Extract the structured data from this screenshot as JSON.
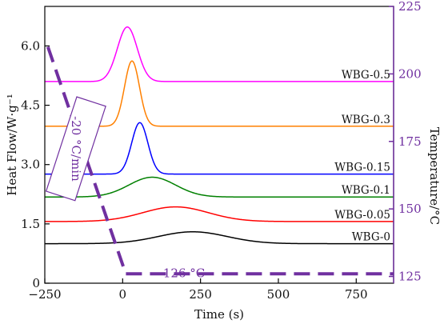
{
  "chart_data": {
    "type": "line",
    "xlabel": "Time (s)",
    "ylabel": "Heat Flow/W·g⁻¹",
    "y2label": "Temperature/°C",
    "xlim": [
      -250,
      870
    ],
    "ylim": [
      0,
      7.0
    ],
    "y2lim": [
      122.5,
      225
    ],
    "x_ticks": [
      -250,
      0,
      250,
      500,
      750
    ],
    "y_ticks": [
      0,
      1.5,
      3.0,
      4.5,
      6.0
    ],
    "y_tick_labels": [
      "0",
      "1.5",
      "3.0",
      "4.5",
      "6.0"
    ],
    "y2_ticks": [
      125,
      150,
      175,
      200,
      225
    ],
    "grid": false,
    "accent_color": "#7030a0",
    "series": [
      {
        "name": "WBG-0",
        "color": "#000000",
        "baseline": 1.0,
        "peak_x": 225,
        "peak_height": 0.3,
        "width": 110
      },
      {
        "name": "WBG-0.05",
        "color": "#ff0000",
        "baseline": 1.56,
        "peak_x": 170,
        "peak_height": 0.37,
        "width": 105
      },
      {
        "name": "WBG-0.1",
        "color": "#008000",
        "baseline": 2.18,
        "peak_x": 95,
        "peak_height": 0.5,
        "width": 75
      },
      {
        "name": "WBG-0.15",
        "color": "#0000ff",
        "baseline": 2.76,
        "peak_x": 55,
        "peak_height": 1.3,
        "width": 26
      },
      {
        "name": "WBG-0.3",
        "color": "#ff8000",
        "baseline": 3.97,
        "peak_x": 30,
        "peak_height": 1.65,
        "width": 24
      },
      {
        "name": "WBG-0.5",
        "color": "#ff00ff",
        "baseline": 5.1,
        "peak_x": 15,
        "peak_height": 1.38,
        "width": 32
      }
    ],
    "temperature_profile": {
      "name": "Temperature",
      "color": "#7030a0",
      "x": [
        -240,
        10,
        870
      ],
      "y": [
        210,
        126,
        126
      ]
    },
    "annotations": [
      {
        "text": "-20 °C/min",
        "x": -150,
        "y": 3.4
      },
      {
        "text": "126 °C",
        "x": 130,
        "y": 0.15
      }
    ]
  }
}
